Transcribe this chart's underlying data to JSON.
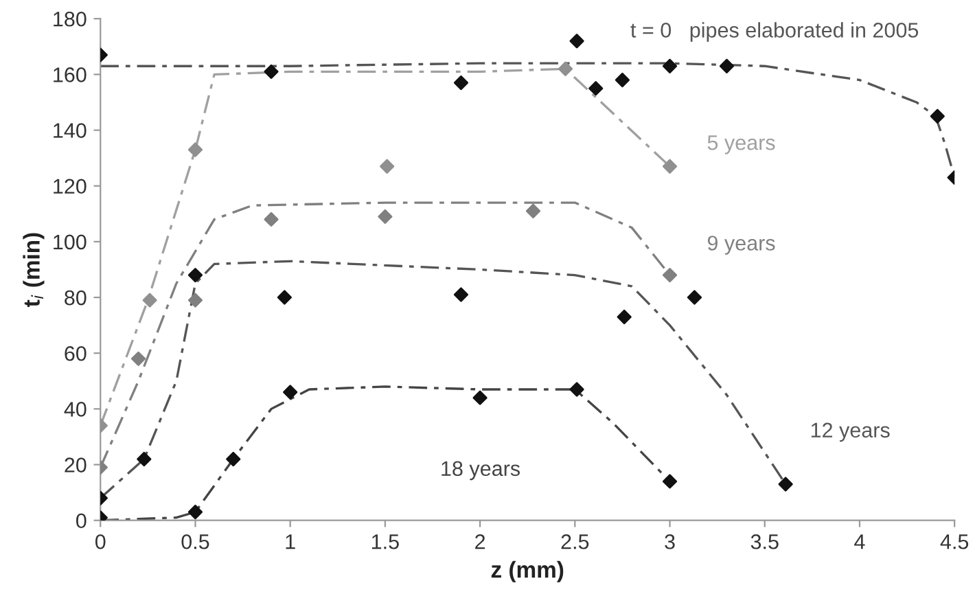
{
  "chart_data": {
    "type": "scatter",
    "xlabel": "z (mm)",
    "ylabel": "t$_{i}$ (min)",
    "xlim": [
      0,
      4.5
    ],
    "ylim": [
      0,
      180
    ],
    "xticks": [
      0,
      0.5,
      1,
      1.5,
      2,
      2.5,
      3,
      3.5,
      4,
      4.5
    ],
    "yticks": [
      0,
      20,
      40,
      60,
      80,
      100,
      120,
      140,
      160,
      180
    ],
    "grid": false,
    "legend": false,
    "marker": "diamond",
    "series": [
      {
        "color": "#111111",
        "x": [
          0,
          0.9,
          1.9,
          2.51,
          2.61,
          2.75,
          3.0,
          3.3,
          4.41,
          4.5
        ],
        "values": [
          167,
          161,
          157,
          172,
          155,
          158,
          163,
          163,
          145,
          123
        ]
      },
      {
        "color": "#909090",
        "x": [
          0,
          0.26,
          0.5,
          1.51,
          2.45,
          3.0
        ],
        "values": [
          34,
          79,
          133,
          127,
          162,
          127
        ]
      },
      {
        "color": "#808080",
        "x": [
          0,
          0.2,
          0.5,
          0.9,
          1.5,
          2.28,
          3.0
        ],
        "values": [
          19,
          58,
          79,
          108,
          109,
          111,
          88
        ]
      },
      {
        "color": "#111111",
        "x": [
          0,
          0.23,
          0.5,
          0.97,
          1.9,
          2.76,
          3.13,
          3.61
        ],
        "values": [
          8,
          22,
          88,
          80,
          81,
          73,
          80,
          13
        ]
      },
      {
        "color": "#111111",
        "x": [
          0,
          0.5,
          0.7,
          1.0,
          2.0,
          2.51,
          3.0
        ],
        "values": [
          1,
          3,
          22,
          46,
          44,
          47,
          14
        ]
      },
      {
        "type": "line",
        "name": "t = 0   pipes elaborated in 2005",
        "line_style": "dashed",
        "marker": "none",
        "color": "#555555",
        "x": [
          0,
          1,
          2,
          3,
          3.5,
          4,
          4.3,
          4.4,
          4.45,
          4.5
        ],
        "values": [
          163,
          163,
          164,
          164,
          163,
          158,
          150,
          145,
          135,
          123
        ]
      },
      {
        "type": "line",
        "name": "5 years",
        "line_style": "dashed",
        "marker": "none",
        "color": "#a0a0a0",
        "x": [
          0,
          0.25,
          0.5,
          0.6,
          1,
          2,
          2.45,
          3.0
        ],
        "values": [
          34,
          79,
          133,
          160,
          161,
          161,
          162,
          127
        ]
      },
      {
        "type": "line",
        "name": "9 years",
        "line_style": "dashed",
        "marker": "none",
        "color": "#808080",
        "x": [
          0,
          0.2,
          0.4,
          0.6,
          0.8,
          1.5,
          2.5,
          2.8,
          3.0
        ],
        "values": [
          19,
          50,
          85,
          108,
          113,
          114,
          114,
          105,
          88
        ]
      },
      {
        "type": "line",
        "name": "12 years",
        "line_style": "dashed",
        "marker": "none",
        "color": "#555555",
        "x": [
          0,
          0.23,
          0.4,
          0.5,
          0.6,
          1,
          2,
          2.5,
          2.8,
          3.0,
          3.3,
          3.61
        ],
        "values": [
          8,
          22,
          50,
          85,
          92,
          93,
          90,
          88,
          84,
          70,
          45,
          13
        ]
      },
      {
        "type": "line",
        "name": "18 years",
        "line_style": "dashed",
        "marker": "none",
        "color": "#444444",
        "x": [
          0,
          0.4,
          0.5,
          0.7,
          0.9,
          1.1,
          1.5,
          2,
          2.5,
          2.7,
          3.0
        ],
        "values": [
          0,
          1,
          3,
          22,
          40,
          47,
          48,
          47,
          47,
          35,
          14
        ]
      }
    ]
  }
}
